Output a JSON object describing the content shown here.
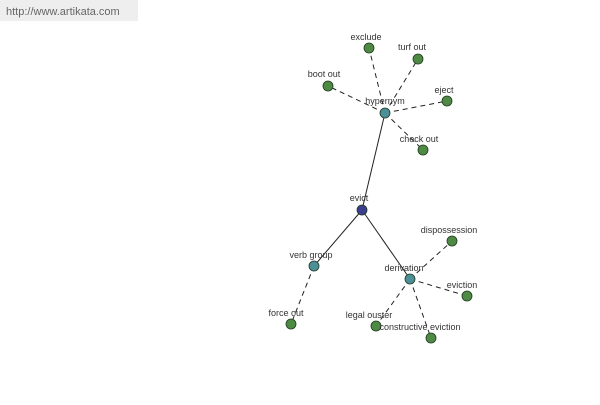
{
  "header": {
    "url": "http://www.artikata.com"
  },
  "nodes": [
    {
      "label": "evict"
    },
    {
      "label": "hypernym"
    },
    {
      "label": "exclude"
    },
    {
      "label": "turf out"
    },
    {
      "label": "boot out"
    },
    {
      "label": "eject"
    },
    {
      "label": "check out"
    },
    {
      "label": "verb group"
    },
    {
      "label": "force out"
    },
    {
      "label": "derivation"
    },
    {
      "label": "dispossession"
    },
    {
      "label": "eviction"
    },
    {
      "label": "legal ouster"
    },
    {
      "label": "constructive eviction"
    }
  ]
}
